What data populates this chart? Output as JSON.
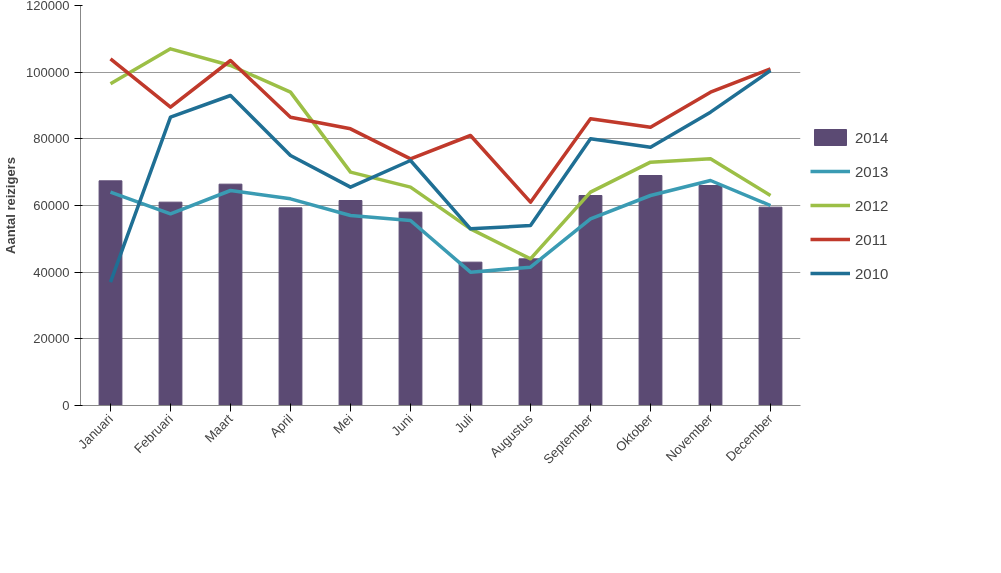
{
  "chart_data": {
    "type": "bar",
    "ylabel": "Aantal reizigers",
    "categories": [
      "Januari",
      "Februari",
      "Maart",
      "April",
      "Mei",
      "Juni",
      "Juli",
      "Augustus",
      "September",
      "Oktober",
      "November",
      "December"
    ],
    "series": [
      {
        "name": "2014",
        "color": "#5b4a73",
        "values": [
          67400,
          61000,
          66400,
          59300,
          61500,
          58000,
          43000,
          44000,
          63000,
          69000,
          66000,
          59500
        ]
      },
      {
        "name": "2013",
        "type": "line",
        "color": "#3a9bb3",
        "values": [
          64000,
          57500,
          64500,
          62000,
          57000,
          55500,
          40000,
          41500,
          56000,
          63000,
          67500,
          60000
        ]
      },
      {
        "name": "2012",
        "type": "line",
        "color": "#9cbf46",
        "values": [
          96500,
          107000,
          102000,
          94000,
          70000,
          65500,
          53000,
          44000,
          64000,
          73000,
          74000,
          63000
        ]
      },
      {
        "name": "2011",
        "type": "line",
        "color": "#c0392b",
        "values": [
          104000,
          89500,
          103500,
          86500,
          83000,
          74000,
          81000,
          61000,
          86000,
          83500,
          94000,
          101000
        ]
      },
      {
        "name": "2010",
        "type": "line",
        "color": "#1f6f94",
        "values": [
          37000,
          86500,
          93000,
          75000,
          65500,
          73500,
          53000,
          54000,
          80000,
          77500,
          88000,
          100500
        ]
      }
    ],
    "ylim": [
      0,
      120000
    ],
    "yticks": [
      0,
      20000,
      40000,
      60000,
      80000,
      100000,
      120000
    ],
    "grid": "y",
    "legend": "right",
    "marker": "none",
    "line_style": "solid"
  }
}
